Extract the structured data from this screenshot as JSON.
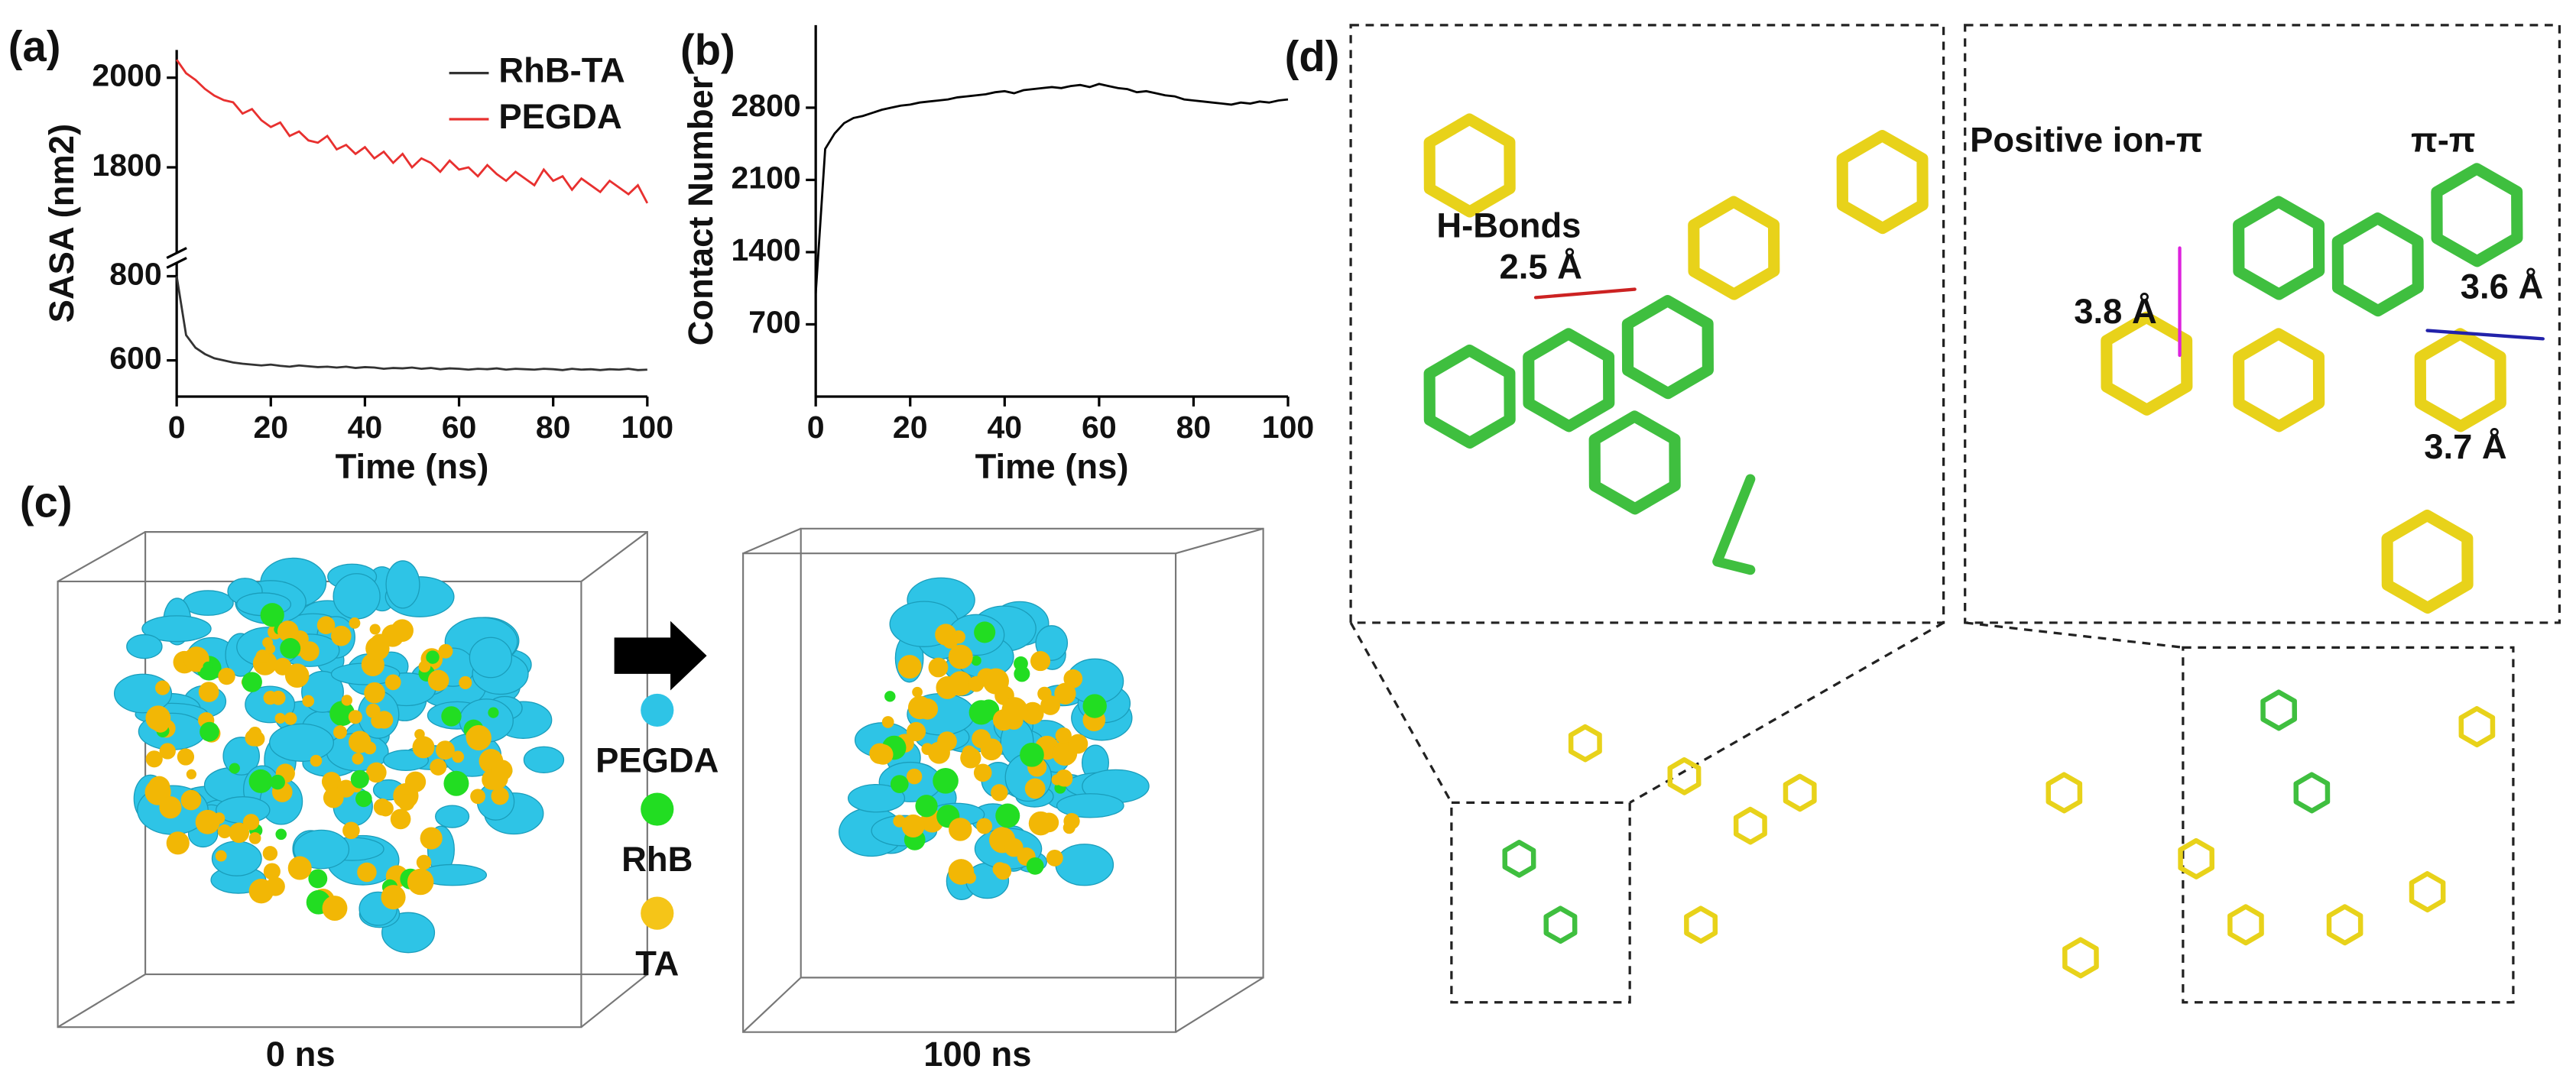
{
  "panel_labels": [
    "(a)",
    "(b)",
    "(c)",
    "(d)"
  ],
  "chart_data": [
    {
      "type": "line",
      "ylabel": "SASA (nm2)",
      "xlabel": "Time (ns)",
      "x": [
        0,
        2,
        4,
        6,
        8,
        10,
        12,
        14,
        16,
        18,
        20,
        22,
        24,
        26,
        28,
        30,
        32,
        34,
        36,
        38,
        40,
        42,
        44,
        46,
        48,
        50,
        52,
        54,
        56,
        58,
        60,
        62,
        64,
        66,
        68,
        70,
        72,
        74,
        76,
        78,
        80,
        82,
        84,
        86,
        88,
        90,
        92,
        94,
        96,
        98,
        100
      ],
      "series": [
        {
          "name": "RhB-TA",
          "color": "#333333",
          "values": [
            800,
            660,
            630,
            615,
            605,
            600,
            595,
            592,
            590,
            588,
            590,
            587,
            585,
            588,
            586,
            584,
            585,
            583,
            585,
            582,
            584,
            583,
            580,
            582,
            581,
            583,
            580,
            582,
            579,
            581,
            580,
            578,
            580,
            579,
            581,
            578,
            580,
            579,
            578,
            580,
            579,
            577,
            580,
            578,
            579,
            577,
            579,
            578,
            580,
            577,
            578
          ]
        },
        {
          "name": "PEGDA",
          "color": "#e8302f",
          "values": [
            2040,
            2010,
            1995,
            1975,
            1960,
            1950,
            1945,
            1920,
            1930,
            1905,
            1890,
            1900,
            1870,
            1880,
            1860,
            1855,
            1870,
            1840,
            1850,
            1830,
            1845,
            1820,
            1835,
            1810,
            1830,
            1800,
            1820,
            1810,
            1790,
            1815,
            1795,
            1800,
            1780,
            1805,
            1785,
            1770,
            1790,
            1775,
            1760,
            1795,
            1770,
            1780,
            1750,
            1775,
            1760,
            1745,
            1770,
            1755,
            1740,
            1760,
            1720
          ]
        }
      ],
      "xlim": [
        0,
        100
      ],
      "xticks": [
        0,
        20,
        40,
        60,
        80,
        100
      ],
      "ylim": [
        514,
        2062
      ],
      "ybreak": [
        820,
        1620
      ],
      "yticks": [
        600,
        800,
        1800,
        2000
      ],
      "legend": "upper right"
    },
    {
      "type": "line",
      "ylabel": "Contact Number",
      "xlabel": "Time (ns)",
      "x": [
        0,
        2,
        4,
        6,
        8,
        10,
        12,
        14,
        16,
        18,
        20,
        22,
        24,
        26,
        28,
        30,
        32,
        34,
        36,
        38,
        40,
        42,
        44,
        46,
        48,
        50,
        52,
        54,
        56,
        58,
        60,
        62,
        64,
        66,
        68,
        70,
        72,
        74,
        76,
        78,
        80,
        82,
        84,
        86,
        88,
        90,
        92,
        94,
        96,
        98,
        100
      ],
      "color": "#000000",
      "values": [
        1000,
        2400,
        2550,
        2650,
        2700,
        2720,
        2750,
        2780,
        2800,
        2820,
        2830,
        2850,
        2860,
        2870,
        2880,
        2900,
        2910,
        2920,
        2930,
        2950,
        2960,
        2940,
        2970,
        2980,
        2990,
        3000,
        2990,
        3010,
        3020,
        3000,
        3030,
        3010,
        2990,
        2980,
        2950,
        2960,
        2940,
        2920,
        2910,
        2880,
        2870,
        2860,
        2850,
        2840,
        2830,
        2850,
        2840,
        2860,
        2850,
        2870,
        2880
      ],
      "xlim": [
        0,
        100
      ],
      "xticks": [
        0,
        20,
        40,
        60,
        80,
        100
      ],
      "ylim": [
        0,
        3600
      ],
      "yticks": [
        700,
        1400,
        2100,
        2800
      ]
    }
  ],
  "simulation": {
    "legend": [
      "PEGDA",
      "RhB",
      "TA"
    ],
    "legend_colors": [
      "#2ec4e6",
      "#22dd22",
      "#f5c518"
    ],
    "snapshots": [
      "0 ns",
      "100 ns"
    ]
  },
  "interactions": {
    "labels": [
      "H-Bonds",
      "2.5 Å",
      "Positive ion-π",
      "π-π",
      "3.8 Å",
      "3.6 Å",
      "3.7 Å"
    ]
  }
}
